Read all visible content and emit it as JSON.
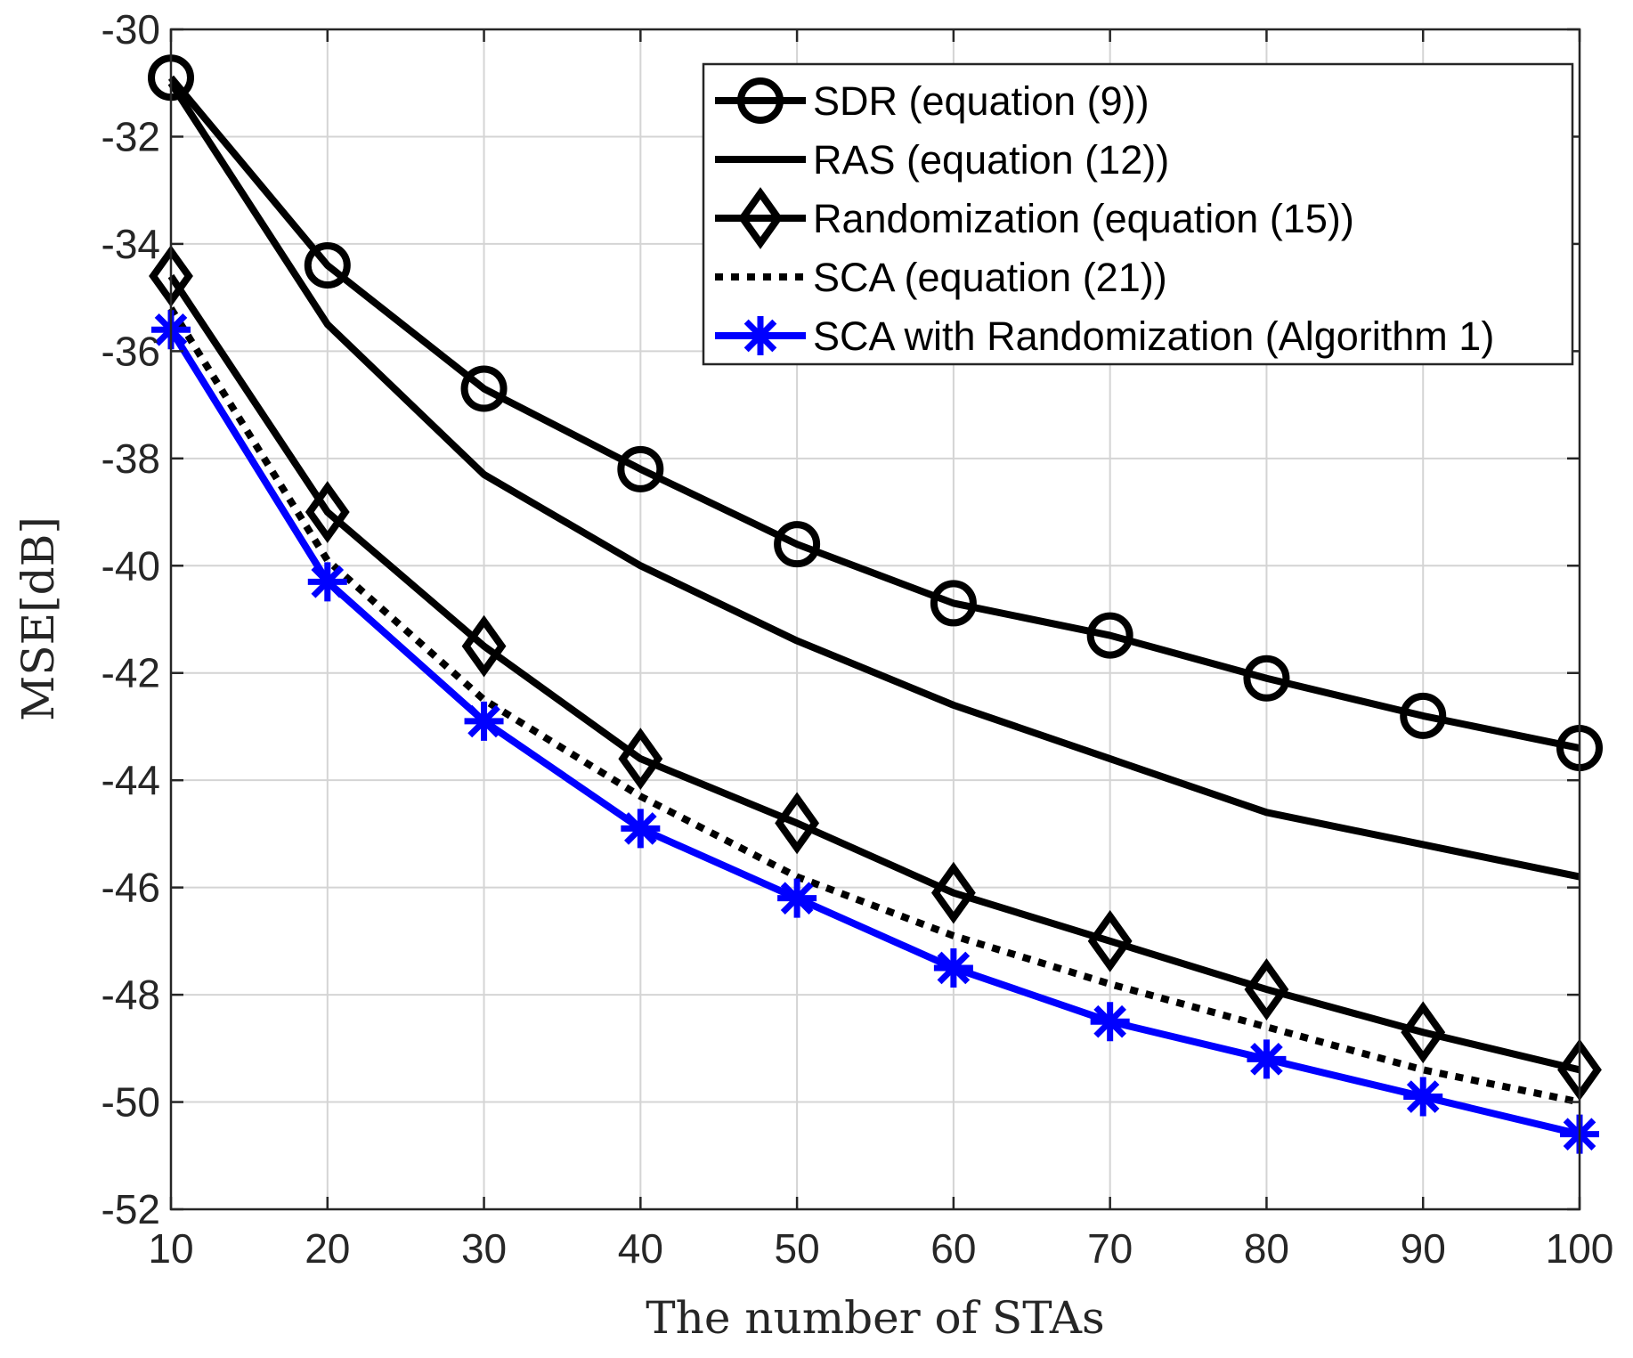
{
  "chart_data": {
    "type": "line",
    "title": "",
    "xlabel": "The number of STAs",
    "ylabel": "MSE[dB]",
    "x": [
      10,
      20,
      30,
      40,
      50,
      60,
      70,
      80,
      90,
      100
    ],
    "xlim": [
      10,
      100
    ],
    "ylim": [
      -52,
      -30
    ],
    "xticks": [
      10,
      20,
      30,
      40,
      50,
      60,
      70,
      80,
      90,
      100
    ],
    "yticks": [
      -52,
      -50,
      -48,
      -46,
      -44,
      -42,
      -40,
      -38,
      -36,
      -34,
      -32,
      -30
    ],
    "grid": true,
    "legend_position": "top-right",
    "series": [
      {
        "name": "SDR (equation (9))",
        "color": "#000000",
        "dash": "solid",
        "marker": "circle",
        "values": [
          -30.9,
          -34.4,
          -36.7,
          -38.2,
          -39.6,
          -40.7,
          -41.3,
          -42.1,
          -42.8,
          -43.4
        ]
      },
      {
        "name": "RAS (equation (12))",
        "color": "#000000",
        "dash": "solid",
        "marker": "none",
        "values": [
          -31.0,
          -35.5,
          -38.3,
          -40.0,
          -41.4,
          -42.6,
          -43.6,
          -44.6,
          -45.2,
          -45.8
        ]
      },
      {
        "name": "Randomization (equation (15))",
        "color": "#000000",
        "dash": "solid",
        "marker": "diamond",
        "values": [
          -34.6,
          -39.0,
          -41.5,
          -43.6,
          -44.8,
          -46.1,
          -47.0,
          -47.9,
          -48.7,
          -49.4
        ]
      },
      {
        "name": "SCA (equation (21))",
        "color": "#000000",
        "dash": "dotted",
        "marker": "none",
        "values": [
          -35.2,
          -39.9,
          -42.5,
          -44.3,
          -45.8,
          -46.9,
          -47.8,
          -48.6,
          -49.4,
          -50.0
        ]
      },
      {
        "name": "SCA with Randomization (Algorithm 1)",
        "color": "#0000ff",
        "dash": "solid",
        "marker": "asterisk",
        "values": [
          -35.6,
          -40.3,
          -42.9,
          -44.9,
          -46.2,
          -47.5,
          -48.5,
          -49.2,
          -49.9,
          -50.6
        ]
      }
    ]
  }
}
